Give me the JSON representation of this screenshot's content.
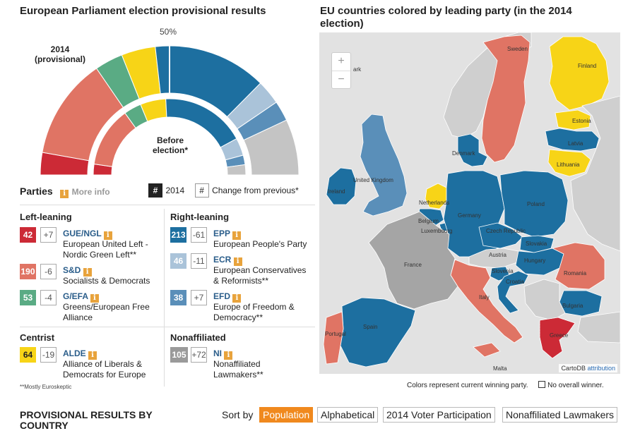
{
  "left_title": "European Parliament election provisional results",
  "map_title": "EU countries colored by leading party (in the 2014 election)",
  "hemicycle": {
    "label_2014": "2014\n(provisional)",
    "label_2014_a": "2014",
    "label_2014_b": "(provisional)",
    "label_before_a": "Before",
    "label_before_b": "election*",
    "majority_label": "50%",
    "outer_seats": [
      {
        "party": "GUE/NGL",
        "seats": 42,
        "color": "#cc2a36"
      },
      {
        "party": "S&D",
        "seats": 190,
        "color": "#e07464"
      },
      {
        "party": "G/EFA",
        "seats": 53,
        "color": "#5aab84"
      },
      {
        "party": "ALDE",
        "seats": 64,
        "color": "#f7d417"
      },
      {
        "party": "EPP",
        "seats": 213,
        "color": "#1d6fa0"
      },
      {
        "party": "ECR",
        "seats": 46,
        "color": "#aac3d9"
      },
      {
        "party": "EFD",
        "seats": 38,
        "color": "#5a8fb9"
      },
      {
        "party": "NI",
        "seats": 105,
        "color": "#c4c4c4"
      }
    ],
    "inner_seats": [
      {
        "party": "GUE/NGL",
        "seats": 35,
        "color": "#cc2a36"
      },
      {
        "party": "S&D",
        "seats": 196,
        "color": "#e07464"
      },
      {
        "party": "G/EFA",
        "seats": 57,
        "color": "#5aab84"
      },
      {
        "party": "ALDE",
        "seats": 83,
        "color": "#f7d417"
      },
      {
        "party": "EPP",
        "seats": 274,
        "color": "#1d6fa0"
      },
      {
        "party": "ECR",
        "seats": 57,
        "color": "#aac3d9"
      },
      {
        "party": "EFD",
        "seats": 31,
        "color": "#5a8fb9"
      },
      {
        "party": "NI",
        "seats": 33,
        "color": "#c4c4c4"
      }
    ]
  },
  "parties_header": {
    "title": "Parties",
    "more_info": "More info",
    "info_glyph": "i",
    "key_2014_symbol": "#",
    "key_2014_label": "2014",
    "key_change_symbol": "#",
    "key_change_label": "Change from previous*"
  },
  "groups": {
    "left": "Left-leaning",
    "right": "Right-leaning",
    "centrist": "Centrist",
    "nonaffiliated": "Nonaffiliated"
  },
  "parties": [
    {
      "abbr": "GUE/NGL",
      "seats": "42",
      "change": "+7",
      "desc1": "European United Left -",
      "desc2": "Nordic Green Left**",
      "color": "#cc2a36"
    },
    {
      "abbr": "S&D",
      "seats": "190",
      "change": "-6",
      "desc1": "Socialists & Democrats",
      "desc2": "",
      "color": "#e07464"
    },
    {
      "abbr": "G/EFA",
      "seats": "53",
      "change": "-4",
      "desc1": "Greens/European Free",
      "desc2": "Alliance",
      "color": "#5aab84"
    },
    {
      "abbr": "ALDE",
      "seats": "64",
      "change": "-19",
      "desc1": "Alliance of Liberals &",
      "desc2": "Democrats for Europe",
      "color": "#f7d417"
    },
    {
      "abbr": "EPP",
      "seats": "213",
      "change": "-61",
      "desc1": "European People's Party",
      "desc2": "",
      "color": "#1d6fa0"
    },
    {
      "abbr": "ECR",
      "seats": "46",
      "change": "-11",
      "desc1": "European Conservatives",
      "desc2": "& Reformists**",
      "color": "#aac3d9"
    },
    {
      "abbr": "EFD",
      "seats": "38",
      "change": "+7",
      "desc1": "Europe of Freedom &",
      "desc2": "Democracy**",
      "color": "#5a8fb9"
    },
    {
      "abbr": "NI",
      "seats": "105",
      "change": "+72",
      "desc1": "Nonaffiliated",
      "desc2": "Lawmakers**",
      "color": "#9a9a9a"
    }
  ],
  "footnote": "**Mostly Euroskeptic",
  "map": {
    "zoom_in": "+",
    "zoom_out": "−",
    "attribution_prefix": "CartoDB",
    "attribution_link": "attribution",
    "countries": {
      "sweden": "Sweden",
      "finland": "Finland",
      "estonia": "Estonia",
      "latvia": "Latvia",
      "lithuania": "Lithuania",
      "denmark": "Denmark",
      "ireland": "Ireland",
      "uk": "United Kingdom",
      "netherlands": "Netherlands",
      "belgium": "Belgium",
      "luxembourg": "Luxembourg",
      "germany": "Germany",
      "poland": "Poland",
      "czech": "Czech Republic",
      "slovakia": "Slovakia",
      "austria": "Austria",
      "hungary": "Hungary",
      "romania": "Romania",
      "slovenia": "Slovenia",
      "croatia": "Croatia",
      "france": "France",
      "italy": "Italy",
      "bulgaria": "Bulgaria",
      "portugal": "Portugal",
      "spain": "Spain",
      "greece": "Greece",
      "malta": "Malta",
      "denmark_partial": "ark"
    }
  },
  "map_legend": {
    "note": "Colors represent current winning party.",
    "no_winner": "No overall winner."
  },
  "bottom": {
    "title_a": "PROVISIONAL RESULTS BY",
    "title_b": "COUNTRY",
    "sort_by": "Sort by",
    "sort_options": [
      "Population",
      "Alphabetical",
      "2014 Voter Participation",
      "Nonaffiliated Lawmakers"
    ],
    "active_sort": "Population"
  }
}
